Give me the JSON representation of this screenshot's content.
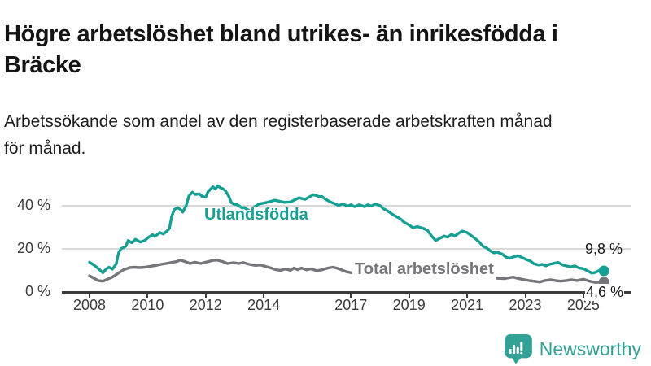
{
  "header": {
    "title_lines": [
      "Högre arbetslöshet bland utrikes- än inrikesfödda i",
      "Bräcke"
    ],
    "subtitle_lines": [
      "Arbetssökande som andel av den registerbaserade arbetskraften månad",
      "för månad."
    ]
  },
  "chart_data": {
    "type": "line",
    "title": "Högre arbetslöshet bland utrikes- än inrikesfödda i Bräcke",
    "subtitle": "Arbetssökande som andel av den registerbaserade arbetskraften månad för månad.",
    "unit": "%",
    "grid": true,
    "legend_position": "inline-labels",
    "xlim": [
      2007.85,
      2026.35
    ],
    "ylim": [
      0,
      52
    ],
    "x_ticks": [
      "2008",
      "2010",
      "2012",
      "2014",
      "2017",
      "2019",
      "2021",
      "2023",
      "2025"
    ],
    "y_ticks": [
      {
        "label": "0 %",
        "value": 0
      },
      {
        "label": "20 %",
        "value": 20
      },
      {
        "label": "40 %",
        "value": 40
      }
    ],
    "series": [
      {
        "name": "Utlandsfödda",
        "color": "#15a093",
        "end_label": "9,8 %",
        "end_value": 9.8,
        "points": [
          [
            2008.0,
            13.8
          ],
          [
            2008.17,
            12.3
          ],
          [
            2008.33,
            10.5
          ],
          [
            2008.46,
            8.9
          ],
          [
            2008.58,
            10.7
          ],
          [
            2008.67,
            11.5
          ],
          [
            2008.79,
            10.6
          ],
          [
            2008.92,
            13.0
          ],
          [
            2009.0,
            18.0
          ],
          [
            2009.08,
            20.0
          ],
          [
            2009.25,
            21.2
          ],
          [
            2009.33,
            23.8
          ],
          [
            2009.46,
            22.8
          ],
          [
            2009.58,
            24.4
          ],
          [
            2009.75,
            23.1
          ],
          [
            2009.92,
            24.0
          ],
          [
            2010.0,
            25.0
          ],
          [
            2010.17,
            26.5
          ],
          [
            2010.25,
            25.7
          ],
          [
            2010.42,
            27.5
          ],
          [
            2010.54,
            26.9
          ],
          [
            2010.67,
            28.2
          ],
          [
            2010.75,
            29.4
          ],
          [
            2010.83,
            35.0
          ],
          [
            2010.92,
            38.2
          ],
          [
            2011.04,
            39.1
          ],
          [
            2011.13,
            38.2
          ],
          [
            2011.21,
            37.0
          ],
          [
            2011.33,
            40.1
          ],
          [
            2011.42,
            44.5
          ],
          [
            2011.54,
            46.2
          ],
          [
            2011.63,
            45.2
          ],
          [
            2011.79,
            45.4
          ],
          [
            2011.88,
            44.2
          ],
          [
            2012.0,
            43.9
          ],
          [
            2012.08,
            46.4
          ],
          [
            2012.17,
            47.7
          ],
          [
            2012.25,
            48.7
          ],
          [
            2012.33,
            47.7
          ],
          [
            2012.42,
            49.2
          ],
          [
            2012.5,
            48.3
          ],
          [
            2012.58,
            47.9
          ],
          [
            2012.67,
            47.0
          ],
          [
            2012.79,
            44.5
          ],
          [
            2012.88,
            41.4
          ],
          [
            2012.96,
            40.7
          ],
          [
            2013.08,
            40.4
          ],
          [
            2013.25,
            38.9
          ],
          [
            2013.33,
            39.1
          ],
          [
            2013.5,
            37.6
          ],
          [
            2013.63,
            38.9
          ],
          [
            2013.83,
            40.7
          ],
          [
            2014.08,
            41.4
          ],
          [
            2014.38,
            42.5
          ],
          [
            2014.71,
            41.5
          ],
          [
            2014.92,
            41.7
          ],
          [
            2015.21,
            43.6
          ],
          [
            2015.42,
            42.9
          ],
          [
            2015.71,
            45.1
          ],
          [
            2015.88,
            44.3
          ],
          [
            2016.0,
            44.2
          ],
          [
            2016.13,
            42.9
          ],
          [
            2016.29,
            41.7
          ],
          [
            2016.46,
            40.8
          ],
          [
            2016.58,
            40.0
          ],
          [
            2016.71,
            40.8
          ],
          [
            2016.88,
            39.8
          ],
          [
            2017.0,
            40.4
          ],
          [
            2017.13,
            39.5
          ],
          [
            2017.29,
            40.4
          ],
          [
            2017.46,
            39.5
          ],
          [
            2017.58,
            40.4
          ],
          [
            2017.71,
            39.8
          ],
          [
            2017.83,
            40.8
          ],
          [
            2018.0,
            40.0
          ],
          [
            2018.13,
            38.5
          ],
          [
            2018.29,
            37.3
          ],
          [
            2018.42,
            36.0
          ],
          [
            2018.58,
            34.8
          ],
          [
            2018.71,
            33.8
          ],
          [
            2018.83,
            32.3
          ],
          [
            2019.0,
            31.0
          ],
          [
            2019.13,
            29.8
          ],
          [
            2019.29,
            30.3
          ],
          [
            2019.5,
            29.4
          ],
          [
            2019.63,
            28.6
          ],
          [
            2019.79,
            25.7
          ],
          [
            2019.92,
            23.8
          ],
          [
            2020.04,
            24.7
          ],
          [
            2020.21,
            25.9
          ],
          [
            2020.33,
            25.4
          ],
          [
            2020.46,
            26.7
          ],
          [
            2020.58,
            25.9
          ],
          [
            2020.71,
            27.2
          ],
          [
            2020.83,
            28.2
          ],
          [
            2021.0,
            27.5
          ],
          [
            2021.08,
            26.7
          ],
          [
            2021.25,
            25.0
          ],
          [
            2021.42,
            23.1
          ],
          [
            2021.54,
            21.2
          ],
          [
            2021.67,
            20.4
          ],
          [
            2021.79,
            19.1
          ],
          [
            2021.92,
            18.1
          ],
          [
            2022.04,
            18.4
          ],
          [
            2022.21,
            17.5
          ],
          [
            2022.33,
            16.2
          ],
          [
            2022.46,
            15.6
          ],
          [
            2022.58,
            16.2
          ],
          [
            2022.75,
            16.8
          ],
          [
            2022.92,
            15.8
          ],
          [
            2023.04,
            15.0
          ],
          [
            2023.17,
            14.4
          ],
          [
            2023.29,
            13.1
          ],
          [
            2023.46,
            12.5
          ],
          [
            2023.58,
            12.8
          ],
          [
            2023.71,
            12.1
          ],
          [
            2023.83,
            12.8
          ],
          [
            2024.0,
            13.3
          ],
          [
            2024.13,
            13.7
          ],
          [
            2024.29,
            12.5
          ],
          [
            2024.42,
            12.1
          ],
          [
            2024.54,
            11.6
          ],
          [
            2024.71,
            12.1
          ],
          [
            2024.83,
            11.2
          ],
          [
            2025.0,
            10.8
          ],
          [
            2025.13,
            9.9
          ],
          [
            2025.29,
            8.7
          ],
          [
            2025.42,
            9.1
          ],
          [
            2025.54,
            9.9
          ],
          [
            2025.71,
            9.8
          ]
        ]
      },
      {
        "name": "Total arbetslöshet",
        "color": "#75757a",
        "end_label": "4,6 %",
        "end_value": 4.6,
        "points": [
          [
            2008.0,
            7.5
          ],
          [
            2008.17,
            6.2
          ],
          [
            2008.29,
            5.3
          ],
          [
            2008.46,
            5.0
          ],
          [
            2008.63,
            6.0
          ],
          [
            2008.79,
            6.9
          ],
          [
            2009.0,
            8.8
          ],
          [
            2009.17,
            10.3
          ],
          [
            2009.38,
            11.3
          ],
          [
            2009.54,
            11.5
          ],
          [
            2009.71,
            11.3
          ],
          [
            2009.92,
            11.5
          ],
          [
            2010.08,
            11.9
          ],
          [
            2010.29,
            12.3
          ],
          [
            2010.46,
            12.8
          ],
          [
            2010.63,
            13.2
          ],
          [
            2010.79,
            13.6
          ],
          [
            2011.0,
            14.1
          ],
          [
            2011.13,
            14.8
          ],
          [
            2011.29,
            14.1
          ],
          [
            2011.46,
            13.2
          ],
          [
            2011.63,
            13.8
          ],
          [
            2011.83,
            13.2
          ],
          [
            2012.0,
            13.8
          ],
          [
            2012.21,
            14.5
          ],
          [
            2012.38,
            14.8
          ],
          [
            2012.58,
            14.1
          ],
          [
            2012.75,
            13.2
          ],
          [
            2012.96,
            13.6
          ],
          [
            2013.13,
            13.2
          ],
          [
            2013.29,
            13.6
          ],
          [
            2013.5,
            12.8
          ],
          [
            2013.71,
            12.3
          ],
          [
            2013.88,
            12.5
          ],
          [
            2014.04,
            11.9
          ],
          [
            2014.25,
            11.1
          ],
          [
            2014.42,
            10.3
          ],
          [
            2014.58,
            10.0
          ],
          [
            2014.75,
            10.7
          ],
          [
            2014.92,
            10.0
          ],
          [
            2015.04,
            11.1
          ],
          [
            2015.17,
            10.3
          ],
          [
            2015.29,
            11.1
          ],
          [
            2015.46,
            10.3
          ],
          [
            2015.63,
            10.7
          ],
          [
            2015.83,
            9.8
          ],
          [
            2016.0,
            10.3
          ],
          [
            2016.21,
            11.1
          ],
          [
            2016.38,
            11.5
          ],
          [
            2016.5,
            11.1
          ],
          [
            2016.67,
            10.3
          ],
          [
            2016.83,
            9.4
          ],
          [
            2017.04,
            8.8
          ],
          [
            2017.33,
            8.4
          ],
          [
            2017.63,
            8.1
          ],
          [
            2018.0,
            7.6
          ],
          [
            2018.5,
            7.3
          ],
          [
            2019.0,
            7.0
          ],
          [
            2019.5,
            6.8
          ],
          [
            2020.0,
            7.1
          ],
          [
            2020.5,
            7.4
          ],
          [
            2021.0,
            7.2
          ],
          [
            2021.5,
            6.8
          ],
          [
            2022.0,
            6.4
          ],
          [
            2022.29,
            6.2
          ],
          [
            2022.58,
            6.9
          ],
          [
            2022.75,
            6.3
          ],
          [
            2022.96,
            5.7
          ],
          [
            2023.13,
            5.3
          ],
          [
            2023.29,
            5.0
          ],
          [
            2023.5,
            4.6
          ],
          [
            2023.67,
            5.3
          ],
          [
            2023.88,
            5.7
          ],
          [
            2024.04,
            5.3
          ],
          [
            2024.21,
            5.0
          ],
          [
            2024.42,
            5.3
          ],
          [
            2024.58,
            5.7
          ],
          [
            2024.79,
            5.3
          ],
          [
            2025.0,
            5.9
          ],
          [
            2025.21,
            5.0
          ],
          [
            2025.42,
            4.4
          ],
          [
            2025.58,
            4.6
          ],
          [
            2025.71,
            4.6
          ]
        ]
      }
    ]
  },
  "footer": {
    "brand": "Newsworthy",
    "brand_color": "#32a296"
  }
}
